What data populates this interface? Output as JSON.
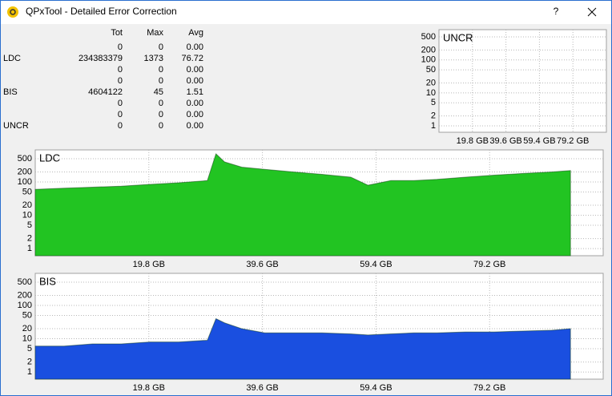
{
  "window": {
    "title": "QPxTool - Detailed Error Correction",
    "help": "?"
  },
  "stats": {
    "columns": [
      "Tot",
      "Max",
      "Avg"
    ],
    "rows": [
      {
        "label": null,
        "values": [
          "0",
          "0",
          "0.00"
        ]
      },
      {
        "label": "LDC",
        "values": [
          "234383379",
          "1373",
          "76.72"
        ]
      },
      {
        "label": null,
        "values": [
          "0",
          "0",
          "0.00"
        ]
      },
      {
        "label": null,
        "values": [
          "0",
          "0",
          "0.00"
        ]
      },
      {
        "label": "BIS",
        "values": [
          "4604122",
          "45",
          "1.51"
        ]
      },
      {
        "label": null,
        "values": [
          "0",
          "0",
          "0.00"
        ]
      },
      {
        "label": null,
        "values": [
          "0",
          "0",
          "0.00"
        ]
      },
      {
        "label": "UNCR",
        "values": [
          "0",
          "0",
          "0.00"
        ]
      }
    ]
  },
  "charts": [
    {
      "type": "area",
      "label": "UNCR",
      "log_scale": true,
      "grid": true,
      "color": "#1a4fe0",
      "xlim": [
        0,
        99
      ],
      "ylim": [
        0.64,
        830
      ],
      "xticks": [
        {
          "value": 19.8,
          "label": "19.8 GB"
        },
        {
          "value": 39.6,
          "label": "39.6 GB"
        },
        {
          "value": 59.4,
          "label": "59.4 GB"
        },
        {
          "value": 79.2,
          "label": "79.2 GB"
        }
      ],
      "yticks": [
        1,
        2,
        5,
        10,
        20,
        50,
        100,
        200,
        500
      ]
    },
    {
      "type": "area",
      "label": "LDC",
      "log_scale": true,
      "grid": true,
      "color": "#22c422",
      "xlim": [
        0,
        99
      ],
      "ylim": [
        0.61,
        920
      ],
      "xticks": [
        {
          "value": 19.8,
          "label": "19.8 GB"
        },
        {
          "value": 39.6,
          "label": "39.6 GB"
        },
        {
          "value": 59.4,
          "label": "59.4 GB"
        },
        {
          "value": 79.2,
          "label": "79.2 GB"
        }
      ],
      "yticks": [
        1,
        2,
        5,
        10,
        20,
        50,
        100,
        200,
        500
      ],
      "x": [
        0,
        5,
        10,
        15,
        20,
        25,
        30,
        31.5,
        33,
        36,
        40,
        45,
        50,
        55,
        58,
        62,
        66,
        70,
        75,
        80,
        85,
        90,
        93.3
      ],
      "values": [
        60,
        65,
        70,
        75,
        85,
        95,
        110,
        700,
        400,
        280,
        240,
        200,
        170,
        140,
        80,
        110,
        110,
        120,
        140,
        160,
        180,
        200,
        220
      ]
    },
    {
      "type": "area",
      "label": "BIS",
      "log_scale": true,
      "grid": true,
      "color": "#1a4fe0",
      "xlim": [
        0,
        99
      ],
      "ylim": [
        0.61,
        920
      ],
      "xticks": [
        {
          "value": 19.8,
          "label": "19.8 GB"
        },
        {
          "value": 39.6,
          "label": "39.6 GB"
        },
        {
          "value": 59.4,
          "label": "59.4 GB"
        },
        {
          "value": 79.2,
          "label": "79.2 GB"
        }
      ],
      "yticks": [
        1,
        2,
        5,
        10,
        20,
        50,
        100,
        200,
        500
      ],
      "x": [
        0,
        5,
        10,
        15,
        20,
        25,
        30,
        31.5,
        33,
        36,
        40,
        45,
        50,
        55,
        58,
        62,
        66,
        70,
        75,
        80,
        85,
        90,
        93.3
      ],
      "values": [
        6,
        6,
        7,
        7,
        8,
        8,
        9,
        40,
        30,
        20,
        15,
        15,
        15,
        14,
        13,
        14,
        15,
        15,
        16,
        16,
        17,
        18,
        20
      ]
    }
  ]
}
